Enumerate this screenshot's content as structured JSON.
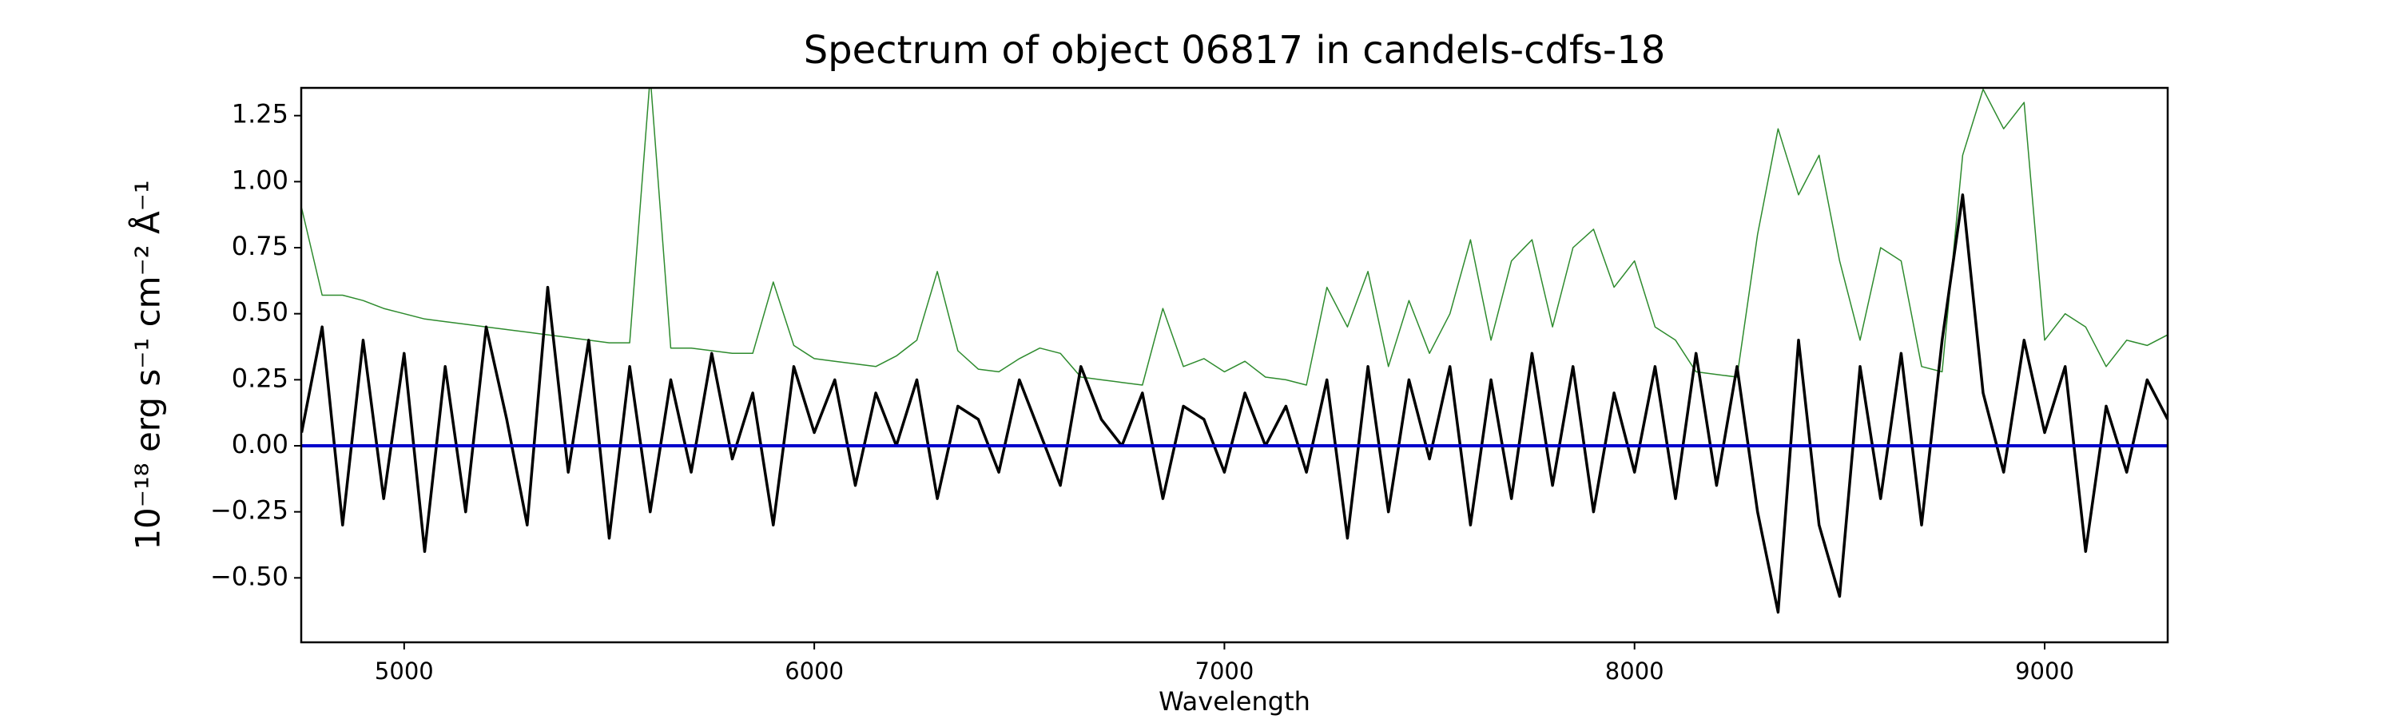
{
  "chart_data": {
    "type": "line",
    "title": "Spectrum of object 06817 in candels-cdfs-18",
    "xlabel": "Wavelength",
    "ylabel": "10⁻¹⁸ erg s⁻¹ cm⁻² Å⁻¹",
    "x": [
      4750,
      4800,
      4850,
      4900,
      4950,
      5000,
      5050,
      5100,
      5150,
      5200,
      5250,
      5300,
      5350,
      5400,
      5450,
      5500,
      5550,
      5600,
      5650,
      5700,
      5750,
      5800,
      5850,
      5900,
      5950,
      6000,
      6050,
      6100,
      6150,
      6200,
      6250,
      6300,
      6350,
      6400,
      6450,
      6500,
      6550,
      6600,
      6650,
      6700,
      6750,
      6800,
      6850,
      6900,
      6950,
      7000,
      7050,
      7100,
      7150,
      7200,
      7250,
      7300,
      7350,
      7400,
      7450,
      7500,
      7550,
      7600,
      7650,
      7700,
      7750,
      7800,
      7850,
      7900,
      7950,
      8000,
      8050,
      8100,
      8150,
      8200,
      8250,
      8300,
      8350,
      8400,
      8450,
      8500,
      8550,
      8600,
      8650,
      8700,
      8750,
      8800,
      8850,
      8900,
      8950,
      9000,
      9050,
      9100,
      9150,
      9200,
      9250,
      9300
    ],
    "series": [
      {
        "color": "#2e8b2e",
        "width": 1.5,
        "values": [
          0.9,
          0.57,
          0.57,
          0.55,
          0.52,
          0.5,
          0.48,
          0.47,
          0.46,
          0.45,
          0.44,
          0.43,
          0.42,
          0.41,
          0.4,
          0.39,
          0.39,
          1.4,
          0.37,
          0.37,
          0.36,
          0.35,
          0.35,
          0.62,
          0.38,
          0.33,
          0.32,
          0.31,
          0.3,
          0.34,
          0.4,
          0.66,
          0.36,
          0.29,
          0.28,
          0.33,
          0.37,
          0.35,
          0.26,
          0.25,
          0.24,
          0.23,
          0.52,
          0.3,
          0.33,
          0.28,
          0.32,
          0.26,
          0.25,
          0.23,
          0.6,
          0.45,
          0.66,
          0.3,
          0.55,
          0.35,
          0.5,
          0.78,
          0.4,
          0.7,
          0.78,
          0.45,
          0.75,
          0.82,
          0.6,
          0.7,
          0.45,
          0.4,
          0.28,
          0.27,
          0.26,
          0.8,
          1.2,
          0.95,
          1.1,
          0.7,
          0.4,
          0.75,
          0.7,
          0.3,
          0.28,
          1.1,
          1.35,
          1.2,
          1.3,
          0.4,
          0.5,
          0.45,
          0.3,
          0.4,
          0.38,
          0.42
        ]
      },
      {
        "color": "#000000",
        "width": 3.5,
        "values": [
          0.05,
          0.45,
          -0.3,
          0.4,
          -0.2,
          0.35,
          -0.4,
          0.3,
          -0.25,
          0.45,
          0.1,
          -0.3,
          0.6,
          -0.1,
          0.4,
          -0.35,
          0.3,
          -0.25,
          0.25,
          -0.1,
          0.35,
          -0.05,
          0.2,
          -0.3,
          0.3,
          0.05,
          0.25,
          -0.15,
          0.2,
          0.0,
          0.25,
          -0.2,
          0.15,
          0.1,
          -0.1,
          0.25,
          0.05,
          -0.15,
          0.3,
          0.1,
          0.0,
          0.2,
          -0.2,
          0.15,
          0.1,
          -0.1,
          0.2,
          0.0,
          0.15,
          -0.1,
          0.25,
          -0.35,
          0.3,
          -0.25,
          0.25,
          -0.05,
          0.3,
          -0.3,
          0.25,
          -0.2,
          0.35,
          -0.15,
          0.3,
          -0.25,
          0.2,
          -0.1,
          0.3,
          -0.2,
          0.35,
          -0.15,
          0.3,
          -0.25,
          -0.63,
          0.4,
          -0.3,
          -0.57,
          0.3,
          -0.2,
          0.35,
          -0.3,
          0.4,
          0.95,
          0.2,
          -0.1,
          0.4,
          0.05,
          0.3,
          -0.4,
          0.15,
          -0.1,
          0.25,
          0.1
        ]
      }
    ],
    "hline": {
      "value": 0,
      "color": "#0000cc"
    },
    "xlim": [
      4749,
      9300
    ],
    "xticks": [
      5000,
      6000,
      7000,
      8000,
      9000
    ],
    "ylim": [
      -0.744,
      1.355
    ],
    "yticks": [
      {
        "value": -0.5,
        "label": "−0.50"
      },
      {
        "value": -0.25,
        "label": "−0.25"
      },
      {
        "value": 0,
        "label": "0.00"
      },
      {
        "value": 0.25,
        "label": "0.25"
      },
      {
        "value": 0.5,
        "label": "0.50"
      },
      {
        "value": 0.75,
        "label": "0.75"
      },
      {
        "value": 1,
        "label": "1.00"
      },
      {
        "value": 1.25,
        "label": "1.25"
      }
    ]
  }
}
